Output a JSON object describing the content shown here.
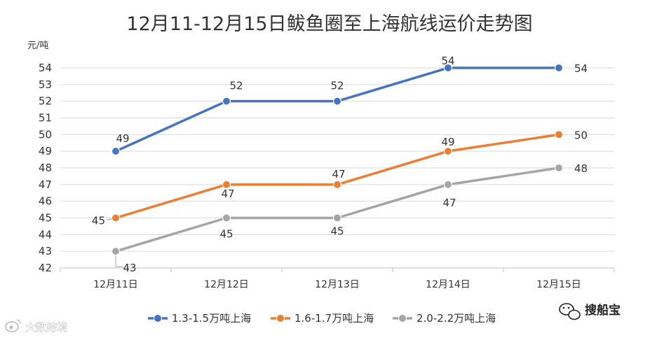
{
  "chart_data": {
    "type": "line",
    "title": "12月11-12月15日鲅鱼圈至上海航线运价走势图",
    "ylabel": "元/吨",
    "xlabel": "",
    "categories": [
      "12月11日",
      "12月12日",
      "12月13日",
      "12月14日",
      "12月15日"
    ],
    "ylim": [
      42,
      54
    ],
    "yticks": [
      42,
      43,
      44,
      45,
      46,
      47,
      48,
      49,
      50,
      51,
      52,
      53,
      54
    ],
    "grid": true,
    "legend_position": "bottom",
    "series": [
      {
        "name": "1.3-1.5万吨上海",
        "color": "#4472c4",
        "values": [
          49,
          52,
          52,
          54,
          54
        ]
      },
      {
        "name": "1.6-1.7万吨上海",
        "color": "#ed7d31",
        "values": [
          45,
          47,
          47,
          49,
          50
        ]
      },
      {
        "name": "2.0-2.2万吨上海",
        "color": "#a5a5a5",
        "values": [
          43,
          45,
          45,
          47,
          48
        ]
      }
    ]
  },
  "watermarks": {
    "left_text": "大数跨境",
    "left_icon": "weibo-icon",
    "right_text": "搜船宝",
    "right_icon": "wechat-icon"
  }
}
